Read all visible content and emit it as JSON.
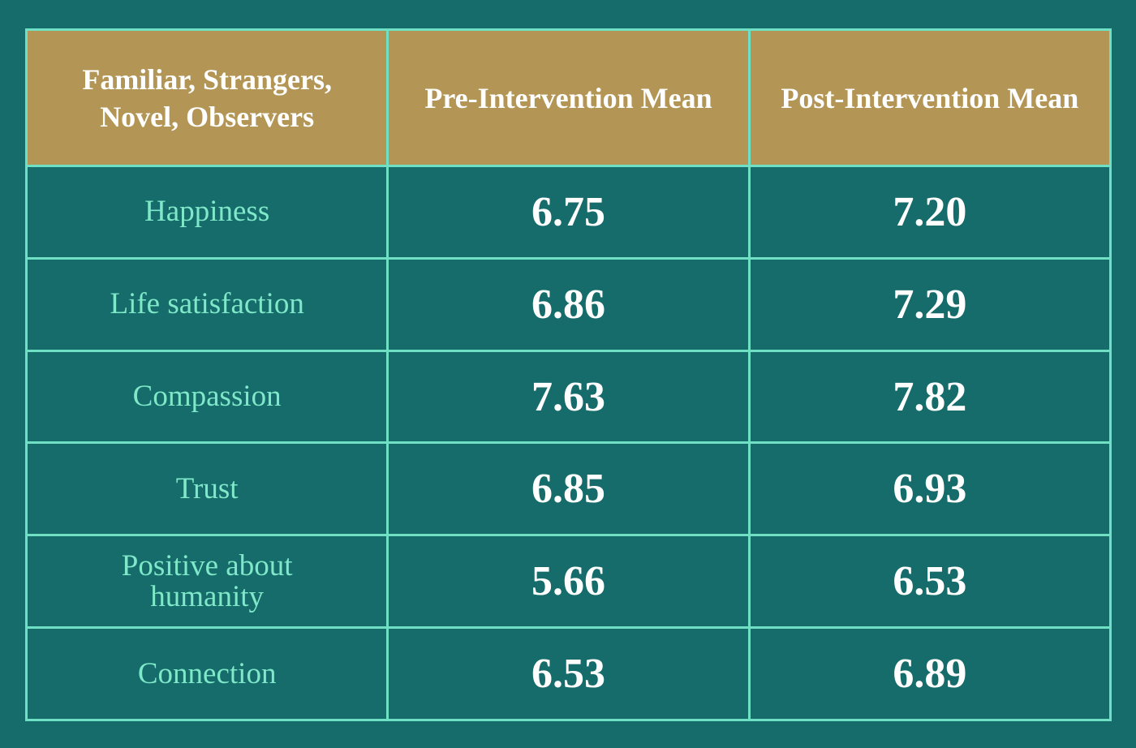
{
  "table": {
    "header": [
      "Familiar, Strangers, Novel, Observers",
      "Pre-Intervention Mean",
      "Post-Intervention Mean"
    ],
    "rows": [
      [
        "Happiness",
        "6.75",
        "7.20"
      ],
      [
        "Life satisfaction",
        "6.86",
        "7.29"
      ],
      [
        "Compassion",
        "7.63",
        "7.82"
      ],
      [
        "Trust",
        "6.85",
        "6.93"
      ],
      [
        "Positive about humanity",
        "5.66",
        "6.53"
      ],
      [
        "Connection",
        "6.53",
        "6.89"
      ]
    ]
  }
}
